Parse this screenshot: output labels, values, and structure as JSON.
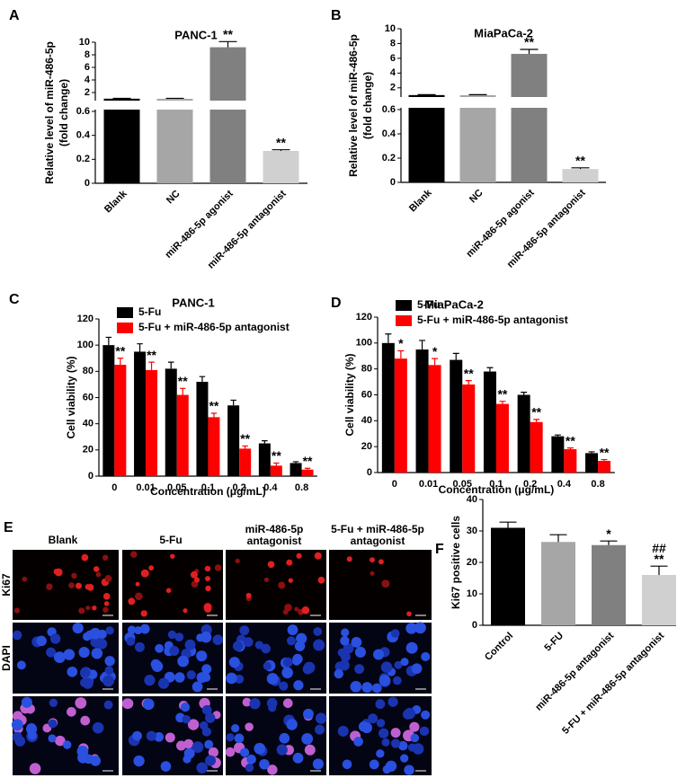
{
  "chart_data": [
    {
      "type": "bar",
      "panel": "A",
      "title": "PANC-1",
      "ylabel": [
        "Relative level of miR-486-5p",
        "(fold change)"
      ],
      "categories": [
        "Blank",
        "NC",
        "miR-486-5p agonist",
        "miR-486-5p antagonist"
      ],
      "values": [
        1.02,
        1.0,
        9.2,
        0.27
      ],
      "errors": [
        0.05,
        0.08,
        0.9,
        0.01
      ],
      "colors": [
        "#000000",
        "#a6a6a6",
        "#808080",
        "#d0d0d0"
      ],
      "significance": [
        null,
        null,
        "**",
        "**"
      ],
      "ylim": [
        0,
        10
      ],
      "ybreak": [
        0.6,
        1
      ],
      "yticks": [
        0,
        0.2,
        0.4,
        0.6,
        2,
        4,
        6,
        8,
        10
      ]
    },
    {
      "type": "bar",
      "panel": "B",
      "title": "MiaPaCa-2",
      "ylabel": [
        "Relative level of miR-486-5p",
        "(fold change)"
      ],
      "categories": [
        "Blank",
        "NC",
        "miR-486-5p agonist",
        "miR-486-5p antagonist"
      ],
      "values": [
        1.02,
        1.0,
        6.6,
        0.11
      ],
      "errors": [
        0.06,
        0.08,
        0.6,
        0.01
      ],
      "colors": [
        "#000000",
        "#a6a6a6",
        "#808080",
        "#d0d0d0"
      ],
      "significance": [
        null,
        null,
        "**",
        "**"
      ],
      "ylim": [
        0,
        10
      ],
      "ybreak": [
        0.6,
        1
      ],
      "yticks": [
        0,
        0.2,
        0.4,
        0.6,
        2,
        4,
        6,
        8,
        10
      ]
    },
    {
      "type": "bar",
      "panel": "C",
      "title": "PANC-1",
      "ylabel": [
        "Cell viability (%)"
      ],
      "xlabel": "Concentration (μg/mL)",
      "categories": [
        "0",
        "0.01",
        "0.05",
        "0.1",
        "0.2",
        "0.4",
        "0.8"
      ],
      "series": [
        {
          "name": "5-Fu",
          "color": "#000000",
          "values": [
            100,
            95,
            82,
            72,
            54,
            25,
            10
          ],
          "errors": [
            6,
            6,
            5,
            4,
            4,
            2,
            1
          ]
        },
        {
          "name": "5-Fu + miR-486-5p antagonist",
          "color": "#ff0000",
          "values": [
            85,
            81,
            62,
            45,
            21,
            8,
            5
          ],
          "errors": [
            5,
            6,
            5,
            3,
            2,
            2,
            1
          ],
          "significance": [
            "**",
            "**",
            "**",
            "**",
            "**",
            "**",
            "**"
          ]
        }
      ],
      "ylim": [
        0,
        120
      ],
      "yticks": [
        0,
        20,
        40,
        60,
        80,
        100,
        120
      ]
    },
    {
      "type": "bar",
      "panel": "D",
      "title": "MiaPaCa-2",
      "ylabel": [
        "Cell viability (%)"
      ],
      "xlabel": "Concentration (μg/mL)",
      "categories": [
        "0",
        "0.01",
        "0.05",
        "0.1",
        "0.2",
        "0.4",
        "0.8"
      ],
      "series": [
        {
          "name": "5-Fu",
          "color": "#000000",
          "values": [
            100,
            95,
            87,
            78,
            60,
            28,
            15
          ],
          "errors": [
            7,
            7,
            5,
            3,
            2,
            1,
            1
          ]
        },
        {
          "name": "5-Fu + miR-486-5p antagonist",
          "color": "#ff0000",
          "values": [
            88,
            83,
            68,
            53,
            39,
            18,
            9
          ],
          "errors": [
            6,
            5,
            3,
            2,
            2,
            1,
            1
          ],
          "significance": [
            "*",
            "*",
            "**",
            "**",
            "**",
            "**",
            "**"
          ]
        }
      ],
      "ylim": [
        0,
        120
      ],
      "yticks": [
        0,
        20,
        40,
        60,
        80,
        100,
        120
      ]
    },
    {
      "type": "bar",
      "panel": "F",
      "ylabel": [
        "Ki67 positive cells"
      ],
      "categories": [
        "Control",
        "5-FU",
        "miR-486-5p antagonist",
        "5-FU + miR-486-5p antagonist"
      ],
      "values": [
        31,
        26.5,
        25.5,
        16
      ],
      "errors": [
        1.8,
        2.3,
        1.3,
        2.8
      ],
      "colors": [
        "#000000",
        "#a6a6a6",
        "#808080",
        "#d0d0d0"
      ],
      "significance": [
        null,
        null,
        "*",
        "**"
      ],
      "significance2": [
        null,
        null,
        null,
        "##"
      ],
      "ylim": [
        0,
        40
      ],
      "yticks": [
        0,
        10,
        20,
        30,
        40
      ]
    }
  ],
  "panel_e": {
    "label": "E",
    "columns": [
      [
        "Blank"
      ],
      [
        "5-Fu"
      ],
      [
        "miR-486-5p",
        "antagonist"
      ],
      [
        "5-Fu + miR-486-5p",
        "antagonist"
      ]
    ],
    "rows": [
      "Ki67",
      "DAPI"
    ]
  }
}
